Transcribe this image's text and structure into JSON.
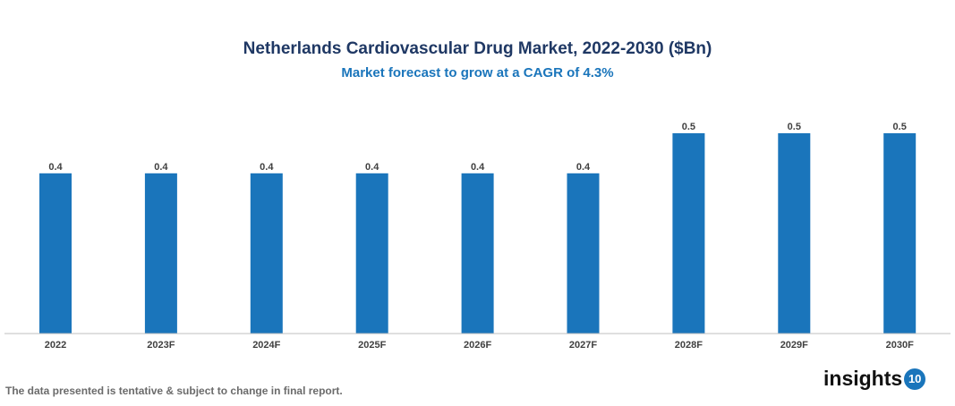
{
  "chart_data": {
    "type": "bar",
    "title": "Netherlands Cardiovascular Drug Market, 2022-2030 ($Bn)",
    "subtitle": "Market forecast to grow at a CAGR of 4.3%",
    "categories": [
      "2022",
      "2023F",
      "2024F",
      "2025F",
      "2026F",
      "2027F",
      "2028F",
      "2029F",
      "2030F"
    ],
    "values": [
      0.4,
      0.4,
      0.4,
      0.4,
      0.4,
      0.4,
      0.5,
      0.5,
      0.5
    ],
    "xlabel": "",
    "ylabel": "",
    "ylim": [
      0,
      0.5
    ],
    "grid": false,
    "bar_color": "#1a75bb"
  },
  "footnote": "The data presented is tentative & subject to change in final report.",
  "logo": {
    "text": "insights",
    "badge": "10"
  }
}
